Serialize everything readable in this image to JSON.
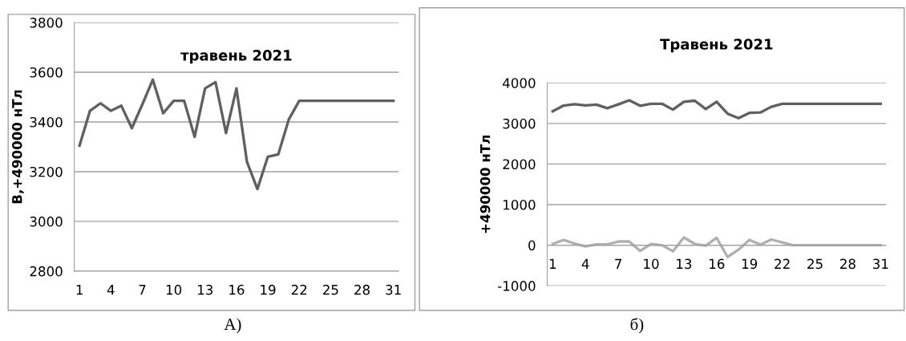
{
  "chart_data": [
    {
      "type": "line",
      "title": "травень 2021",
      "ylabel": "В,+490000 нТл",
      "categories": [
        "1",
        null,
        null,
        "4",
        null,
        null,
        "7",
        null,
        null,
        "10",
        null,
        null,
        "13",
        null,
        null,
        "16",
        null,
        null,
        "19",
        null,
        null,
        "22",
        null,
        null,
        "25",
        null,
        null,
        "28",
        null,
        null,
        "31"
      ],
      "series": [
        {
          "color": "#606060",
          "values": [
            3305,
            3445,
            3475,
            3445,
            3465,
            3375,
            3470,
            3570,
            3435,
            3485,
            3485,
            3340,
            3535,
            3560,
            3355,
            3535,
            3240,
            3130,
            3260,
            3270,
            3410,
            3485,
            3485,
            3485,
            3485,
            3485,
            3485,
            3485,
            3485,
            3485,
            3485
          ]
        }
      ],
      "ylim": [
        2800,
        3800
      ],
      "yticks": [
        2800,
        3000,
        3200,
        3400,
        3600,
        3800
      ],
      "grid": "y",
      "marker": "none",
      "line_style": "solid",
      "annotations": [
        "А)"
      ]
    },
    {
      "type": "line",
      "title": "Травень 2021",
      "ylabel": "+490000 нТл",
      "categories": [
        "1",
        null,
        null,
        "4",
        null,
        null,
        "7",
        null,
        null,
        "10",
        null,
        null,
        "13",
        null,
        null,
        "16",
        null,
        null,
        "19",
        null,
        null,
        "22",
        null,
        null,
        "25",
        null,
        null,
        "28",
        null,
        null,
        "31"
      ],
      "series": [
        {
          "color": "#606060",
          "values": [
            3300,
            3440,
            3475,
            3445,
            3465,
            3375,
            3470,
            3570,
            3435,
            3485,
            3485,
            3340,
            3535,
            3560,
            3355,
            3535,
            3240,
            3130,
            3260,
            3270,
            3410,
            3485,
            3485,
            3485,
            3485,
            3485,
            3485,
            3485,
            3485,
            3485,
            3485
          ]
        },
        {
          "color": "#b0b0b0",
          "values": [
            30,
            130,
            40,
            -30,
            20,
            20,
            90,
            90,
            -140,
            30,
            0,
            -150,
            190,
            30,
            -10,
            180,
            -290,
            -110,
            130,
            10,
            140,
            70,
            0,
            0,
            0,
            0,
            0,
            0,
            0,
            0,
            0
          ]
        }
      ],
      "ylim": [
        -1000,
        4000
      ],
      "yticks": [
        -1000,
        0,
        1000,
        2000,
        3000,
        4000
      ],
      "grid": "y",
      "marker": "none",
      "line_style": "solid",
      "annotations": [
        "б)"
      ]
    }
  ]
}
